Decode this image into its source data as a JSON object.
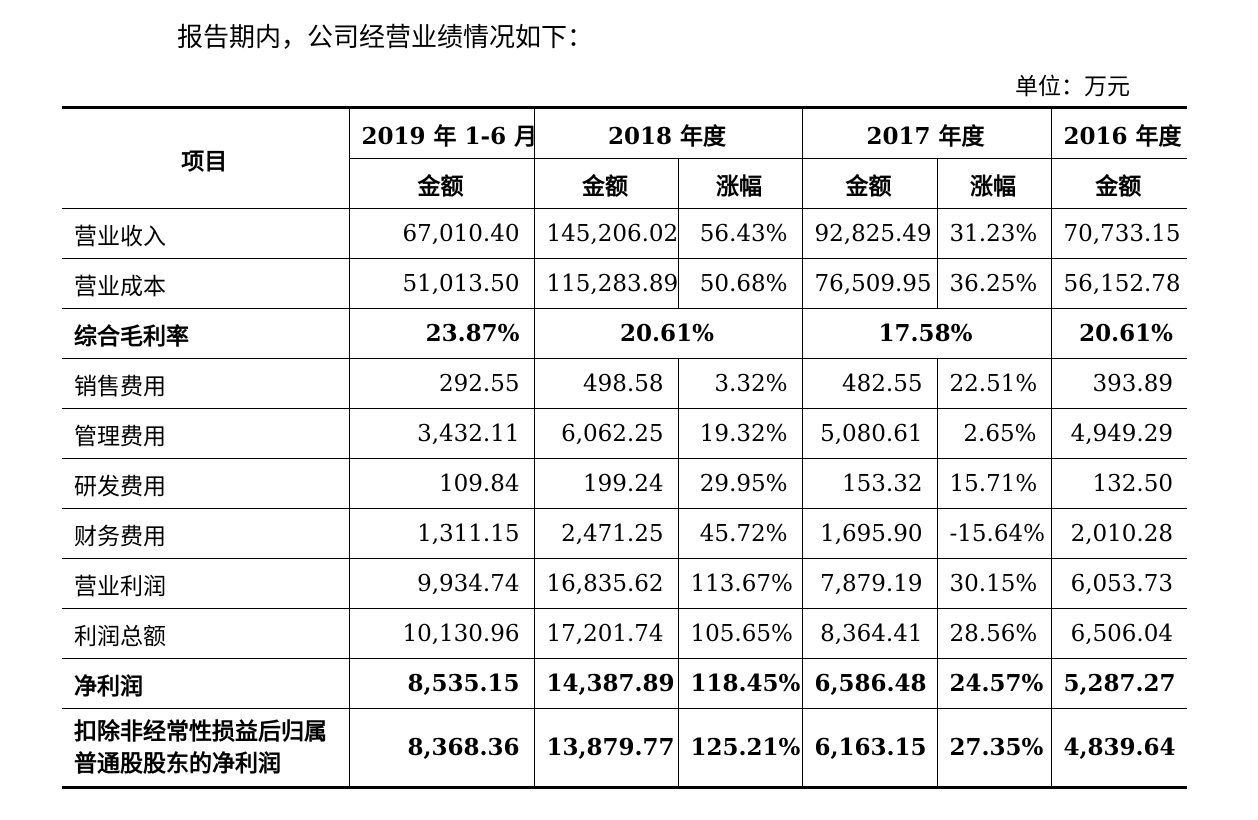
{
  "intro_text": "报告期内，公司经营业绩情况如下：",
  "unit_text": "单位：万元",
  "table": {
    "item_header": "项目",
    "periods": [
      "2019 年 1-6 月",
      "2018 年度",
      "2017 年度",
      "2016 年度"
    ],
    "subheaders": [
      "金额",
      "金额",
      "涨幅",
      "金额",
      "涨幅",
      "金额"
    ],
    "rows": [
      {
        "label": "营业收入",
        "values": [
          "67,010.40",
          "145,206.02",
          "56.43%",
          "92,825.49",
          "31.23%",
          "70,733.15"
        ]
      },
      {
        "label": "营业成本",
        "values": [
          "51,013.50",
          "115,283.89",
          "50.68%",
          "76,509.95",
          "36.25%",
          "56,152.78"
        ]
      },
      {
        "label": "综合毛利率",
        "values": [
          "23.87%",
          "20.61%",
          "17.58%",
          "20.61%"
        ]
      },
      {
        "label": "销售费用",
        "values": [
          "292.55",
          "498.58",
          "3.32%",
          "482.55",
          "22.51%",
          "393.89"
        ]
      },
      {
        "label": "管理费用",
        "values": [
          "3,432.11",
          "6,062.25",
          "19.32%",
          "5,080.61",
          "2.65%",
          "4,949.29"
        ]
      },
      {
        "label": "研发费用",
        "values": [
          "109.84",
          "199.24",
          "29.95%",
          "153.32",
          "15.71%",
          "132.50"
        ]
      },
      {
        "label": "财务费用",
        "values": [
          "1,311.15",
          "2,471.25",
          "45.72%",
          "1,695.90",
          "-15.64%",
          "2,010.28"
        ]
      },
      {
        "label": "营业利润",
        "values": [
          "9,934.74",
          "16,835.62",
          "113.67%",
          "7,879.19",
          "30.15%",
          "6,053.73"
        ]
      },
      {
        "label": "利润总额",
        "values": [
          "10,130.96",
          "17,201.74",
          "105.65%",
          "8,364.41",
          "28.56%",
          "6,506.04"
        ]
      },
      {
        "label": "净利润",
        "values": [
          "8,535.15",
          "14,387.89",
          "118.45%",
          "6,586.48",
          "24.57%",
          "5,287.27"
        ]
      },
      {
        "label": "扣除非经常性损益后归属普通股股东的净利润",
        "values": [
          "8,368.36",
          "13,879.77",
          "125.21%",
          "6,163.15",
          "27.35%",
          "4,839.64"
        ]
      }
    ]
  }
}
